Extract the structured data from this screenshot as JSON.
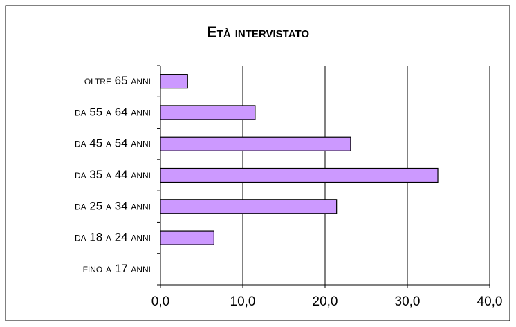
{
  "chart_data": {
    "type": "bar",
    "orientation": "horizontal",
    "title": "Età intervistato",
    "categories": [
      "oltre 65 anni",
      "da 55 a 64 anni",
      "da 45 a 54 anni",
      "da 35 a 44 anni",
      "da 25 a 34 anni",
      "da 18 a 24 anni",
      "fino a 17 anni"
    ],
    "values": [
      3.3,
      11.5,
      23.1,
      33.7,
      21.4,
      6.5,
      0
    ],
    "color": "#cc99ff",
    "xlim": [
      0,
      40
    ],
    "xticks": [
      {
        "value": 0,
        "label": "0,0"
      },
      {
        "value": 10,
        "label": "10,0"
      },
      {
        "value": 20,
        "label": "20,0"
      },
      {
        "value": 30,
        "label": "30,0"
      },
      {
        "value": 40,
        "label": "40,0"
      }
    ],
    "grid": true
  }
}
